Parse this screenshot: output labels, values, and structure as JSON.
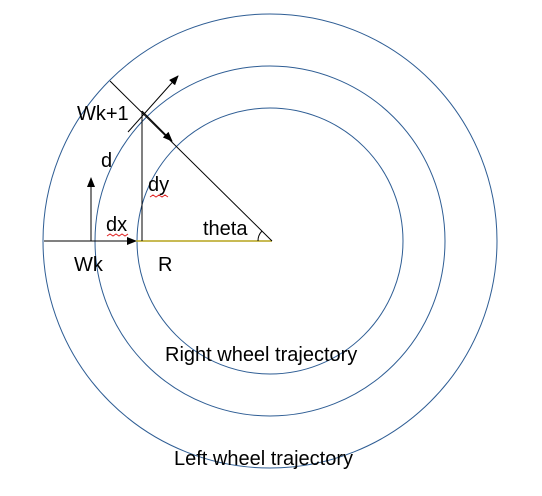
{
  "diagram": {
    "labels": {
      "wk_next": "Wk+1",
      "d": "d",
      "dy": "dy",
      "dx": "dx",
      "theta": "theta",
      "wk": "Wk",
      "r": "R",
      "right_wheel": "Right wheel trajectory",
      "left_wheel": "Left wheel trajectory"
    },
    "colors": {
      "circle": "#2e5d94",
      "line": "#000000",
      "radius": "#b5a31c",
      "squiggle": "#e02020"
    }
  }
}
